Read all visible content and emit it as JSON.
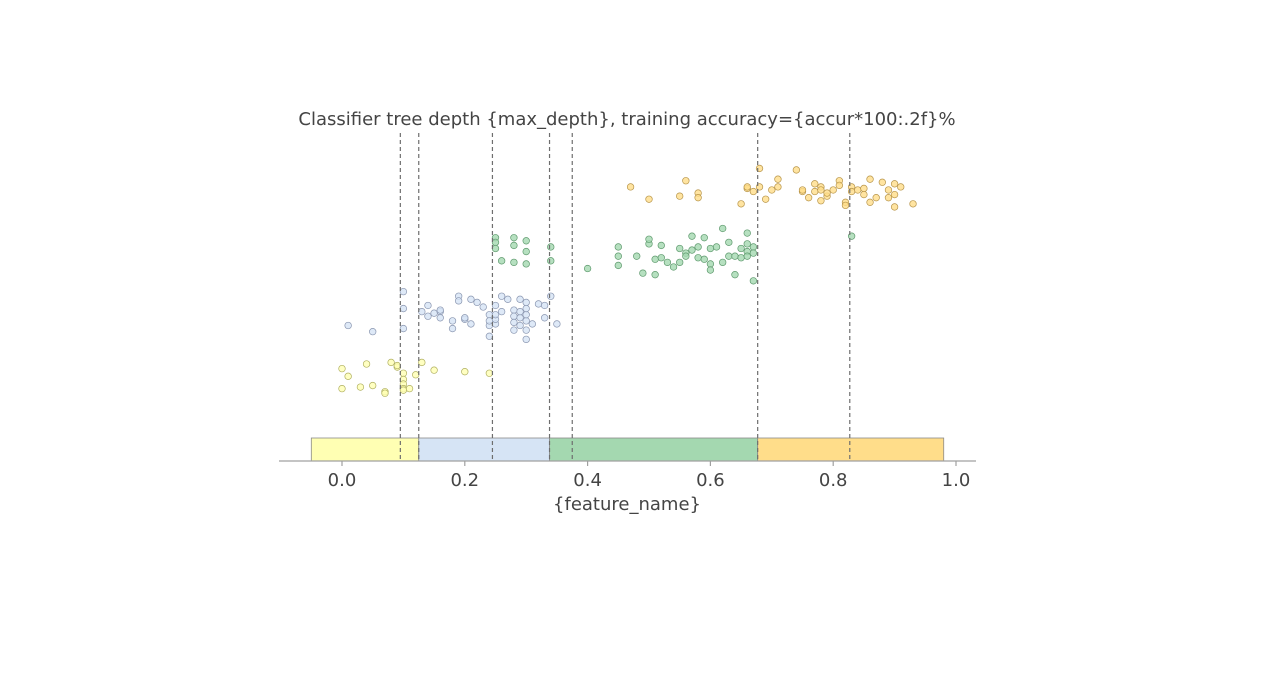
{
  "chart_data": {
    "type": "scatter",
    "title": "Classifier tree depth {max_depth}, training accuracy={accur*100:.2f}%",
    "xlabel": "{feature_name}",
    "xlim": [
      -0.105,
      1.035
    ],
    "ylim": [
      0,
      1
    ],
    "x_ticks": [
      0.0,
      0.2,
      0.4,
      0.6,
      0.8,
      1.0
    ],
    "x_tick_labels": [
      "0.0",
      "0.2",
      "0.4",
      "0.6",
      "0.8",
      "1.0"
    ],
    "splits": [
      0.095,
      0.125,
      0.245,
      0.338,
      0.375,
      0.677,
      0.827
    ],
    "regions": [
      {
        "x0": -0.05,
        "x1": 0.125,
        "class": 0
      },
      {
        "x0": 0.125,
        "x1": 0.338,
        "class": 1
      },
      {
        "x0": 0.338,
        "x1": 0.677,
        "class": 2
      },
      {
        "x0": 0.677,
        "x1": 0.98,
        "class": 3
      }
    ],
    "colors": {
      "class0_fill": "#ffffb3",
      "class0_edge": "#b0b060",
      "class1_fill": "#d6e4f5",
      "class1_edge": "#8a96b0",
      "class2_fill": "#a4d8b0",
      "class2_edge": "#5f9a6e",
      "class3_fill": "#ffdd8a",
      "class3_edge": "#b8954a"
    },
    "series": [
      {
        "class": 0,
        "x": [
          0.0,
          0.01,
          0.0,
          0.03,
          0.04,
          0.05,
          0.07,
          0.07,
          0.08,
          0.09,
          0.09,
          0.1,
          0.1,
          0.1,
          0.1,
          0.1,
          0.11,
          0.12,
          0.13,
          0.15,
          0.2,
          0.24
        ],
        "y": [
          0.235,
          0.21,
          0.17,
          0.175,
          0.25,
          0.18,
          0.16,
          0.155,
          0.255,
          0.24,
          0.245,
          0.22,
          0.2,
          0.185,
          0.17,
          0.165,
          0.17,
          0.215,
          0.255,
          0.23,
          0.225,
          0.22
        ]
      },
      {
        "class": 1,
        "x": [
          0.01,
          0.05,
          0.1,
          0.1,
          0.1,
          0.13,
          0.14,
          0.14,
          0.15,
          0.16,
          0.16,
          0.16,
          0.18,
          0.18,
          0.19,
          0.19,
          0.2,
          0.2,
          0.21,
          0.21,
          0.22,
          0.23,
          0.24,
          0.24,
          0.24,
          0.24,
          0.25,
          0.25,
          0.25,
          0.25,
          0.26,
          0.26,
          0.27,
          0.28,
          0.28,
          0.28,
          0.28,
          0.29,
          0.29,
          0.29,
          0.29,
          0.3,
          0.3,
          0.3,
          0.3,
          0.3,
          0.3,
          0.31,
          0.32,
          0.33,
          0.33,
          0.34,
          0.35
        ],
        "y": [
          0.375,
          0.355,
          0.485,
          0.43,
          0.365,
          0.42,
          0.405,
          0.44,
          0.415,
          0.42,
          0.4,
          0.425,
          0.39,
          0.365,
          0.47,
          0.455,
          0.395,
          0.4,
          0.46,
          0.38,
          0.45,
          0.435,
          0.41,
          0.375,
          0.39,
          0.34,
          0.38,
          0.395,
          0.41,
          0.44,
          0.47,
          0.42,
          0.46,
          0.425,
          0.405,
          0.385,
          0.36,
          0.375,
          0.4,
          0.42,
          0.46,
          0.33,
          0.36,
          0.39,
          0.41,
          0.43,
          0.45,
          0.38,
          0.445,
          0.4,
          0.44,
          0.47,
          0.38
        ]
      },
      {
        "class": 2,
        "x": [
          0.25,
          0.25,
          0.25,
          0.26,
          0.28,
          0.28,
          0.28,
          0.3,
          0.3,
          0.3,
          0.34,
          0.34,
          0.4,
          0.45,
          0.45,
          0.45,
          0.48,
          0.49,
          0.5,
          0.5,
          0.51,
          0.51,
          0.52,
          0.52,
          0.53,
          0.54,
          0.55,
          0.55,
          0.56,
          0.56,
          0.57,
          0.57,
          0.58,
          0.58,
          0.59,
          0.59,
          0.6,
          0.6,
          0.6,
          0.61,
          0.62,
          0.62,
          0.63,
          0.63,
          0.64,
          0.64,
          0.65,
          0.65,
          0.66,
          0.66,
          0.66,
          0.66,
          0.67,
          0.67,
          0.67,
          0.83
        ],
        "y": [
          0.66,
          0.645,
          0.625,
          0.585,
          0.66,
          0.635,
          0.58,
          0.65,
          0.615,
          0.575,
          0.63,
          0.585,
          0.56,
          0.63,
          0.6,
          0.57,
          0.6,
          0.545,
          0.64,
          0.655,
          0.54,
          0.59,
          0.635,
          0.595,
          0.58,
          0.565,
          0.625,
          0.58,
          0.61,
          0.6,
          0.665,
          0.62,
          0.63,
          0.595,
          0.66,
          0.59,
          0.625,
          0.575,
          0.555,
          0.63,
          0.69,
          0.58,
          0.6,
          0.645,
          0.6,
          0.54,
          0.625,
          0.595,
          0.675,
          0.64,
          0.615,
          0.6,
          0.63,
          0.61,
          0.52,
          0.665
        ]
      },
      {
        "class": 3,
        "x": [
          0.47,
          0.5,
          0.55,
          0.56,
          0.58,
          0.58,
          0.65,
          0.66,
          0.66,
          0.67,
          0.68,
          0.68,
          0.69,
          0.7,
          0.71,
          0.71,
          0.74,
          0.75,
          0.75,
          0.76,
          0.77,
          0.77,
          0.78,
          0.78,
          0.78,
          0.79,
          0.79,
          0.8,
          0.81,
          0.81,
          0.82,
          0.82,
          0.83,
          0.83,
          0.84,
          0.85,
          0.85,
          0.86,
          0.86,
          0.87,
          0.88,
          0.89,
          0.89,
          0.9,
          0.9,
          0.9,
          0.91,
          0.93
        ],
        "y": [
          0.825,
          0.785,
          0.795,
          0.845,
          0.805,
          0.79,
          0.77,
          0.82,
          0.825,
          0.81,
          0.885,
          0.825,
          0.785,
          0.815,
          0.85,
          0.825,
          0.88,
          0.81,
          0.815,
          0.79,
          0.835,
          0.81,
          0.825,
          0.815,
          0.78,
          0.795,
          0.805,
          0.815,
          0.845,
          0.83,
          0.775,
          0.765,
          0.825,
          0.81,
          0.815,
          0.82,
          0.8,
          0.85,
          0.775,
          0.79,
          0.84,
          0.815,
          0.79,
          0.835,
          0.8,
          0.76,
          0.825,
          0.77
        ]
      }
    ]
  }
}
